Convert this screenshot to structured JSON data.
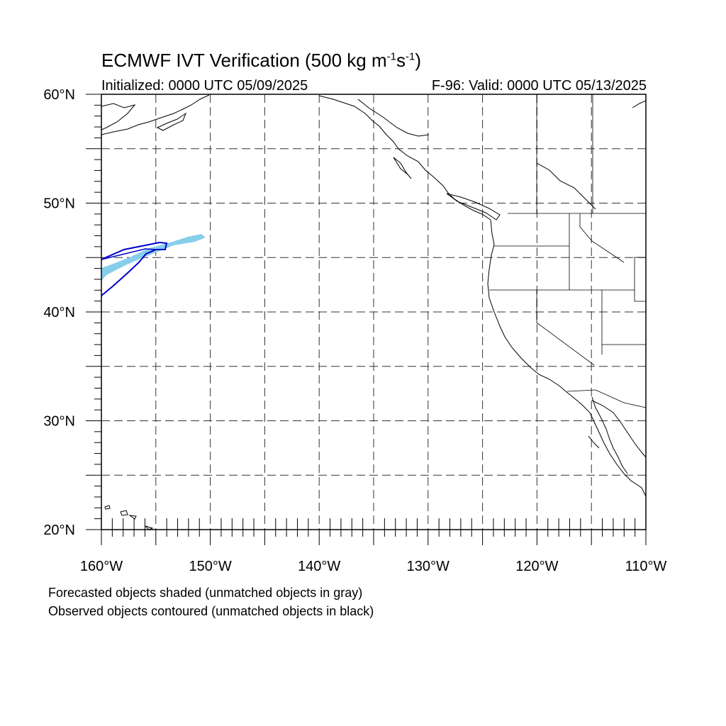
{
  "header": {
    "title_main": "ECMWF IVT Verification (500 kg m",
    "title_exp1": "-1",
    "title_mid": "s",
    "title_exp2": "-1",
    "title_end": ")",
    "initialized": "Initialized: 0000 UTC 05/09/2025",
    "valid": "F-96: Valid: 0000 UTC 05/13/2025"
  },
  "map": {
    "lat_labels": [
      {
        "text": "60°N",
        "lat": 60
      },
      {
        "text": "50°N",
        "lat": 50
      },
      {
        "text": "40°N",
        "lat": 40
      },
      {
        "text": "30°N",
        "lat": 30
      },
      {
        "text": "20°N",
        "lat": 20
      }
    ],
    "lon_labels": [
      {
        "text": "160°W",
        "lon": -160
      },
      {
        "text": "150°W",
        "lon": -150
      },
      {
        "text": "140°W",
        "lon": -140
      },
      {
        "text": "130°W",
        "lon": -130
      },
      {
        "text": "120°W",
        "lon": -120
      },
      {
        "text": "110°W",
        "lon": -110
      }
    ],
    "lon_range": [
      -160,
      -110
    ],
    "lat_range": [
      20,
      60
    ],
    "grid_spacing_deg": 5,
    "grid_style": "dashed",
    "forecast_color": "#87ceeb",
    "observed_color": "#0000cd",
    "coast_color": "#000000"
  },
  "legend": {
    "line1": "Forecasted objects shaded (unmatched objects in gray)",
    "line2": "Observed objects contoured (unmatched objects in black)"
  }
}
